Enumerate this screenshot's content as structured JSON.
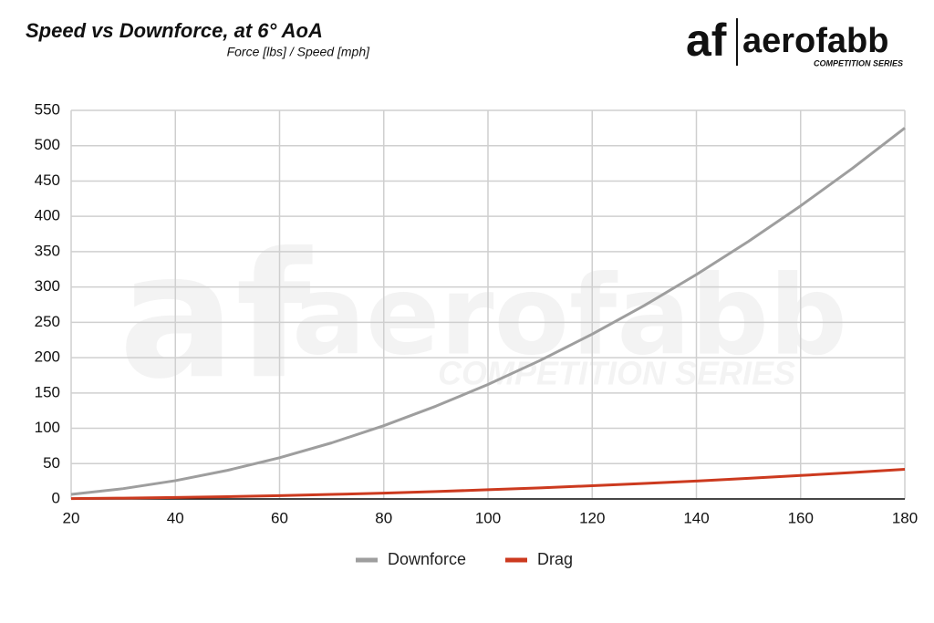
{
  "chart_data": {
    "type": "line",
    "title": "Speed vs Downforce, at 6° AoA",
    "subtitle": "Force [lbs] / Speed [mph]",
    "logo": {
      "mark": "af",
      "name": "aerofabb",
      "tagline": "COMPETITION SERIES"
    },
    "x": [
      20,
      30,
      40,
      50,
      60,
      70,
      80,
      90,
      100,
      110,
      120,
      130,
      140,
      150,
      160,
      170,
      180
    ],
    "series": [
      {
        "name": "Downforce",
        "color": "#9e9e9e",
        "values": [
          6.5,
          14.6,
          25.9,
          40.5,
          58.3,
          79.4,
          103.7,
          131.3,
          162,
          196,
          233.3,
          273.8,
          317.6,
          364.6,
          414.8,
          468.3,
          525
        ]
      },
      {
        "name": "Drag",
        "color": "#cc3a1f",
        "values": [
          0.5,
          1.2,
          2.1,
          3.2,
          4.7,
          6.4,
          8.3,
          10.5,
          13,
          15.7,
          18.7,
          21.9,
          25.4,
          29.2,
          33.2,
          37.5,
          42
        ]
      }
    ],
    "xlim": [
      20,
      180
    ],
    "xticks": [
      20,
      40,
      60,
      80,
      100,
      120,
      140,
      160,
      180
    ],
    "ylim": [
      0,
      550
    ],
    "yticks": [
      0,
      50,
      100,
      150,
      200,
      250,
      300,
      350,
      400,
      450,
      500,
      550
    ],
    "grid": true,
    "legend": "bottom"
  }
}
